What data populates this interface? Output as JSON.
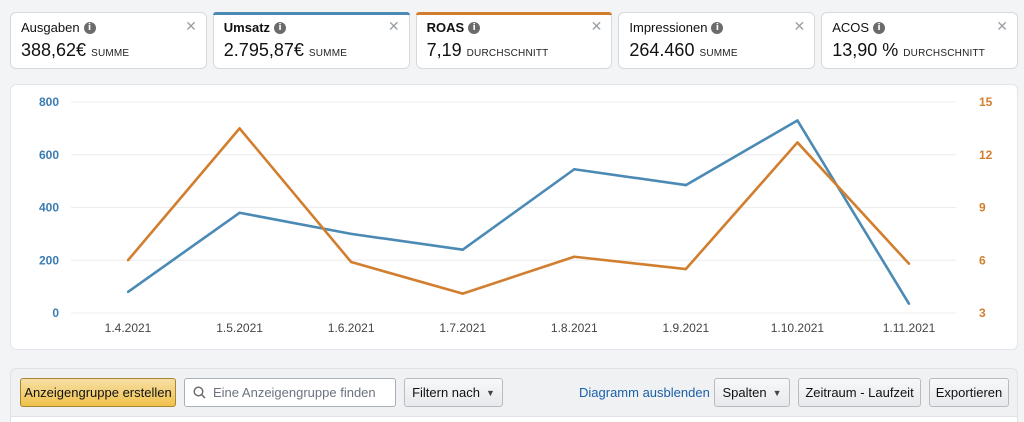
{
  "metrics": [
    {
      "label": "Ausgaben",
      "value": "388,62€",
      "agg": "SUMME",
      "selected": false,
      "accent": ""
    },
    {
      "label": "Umsatz",
      "value": "2.795,87€",
      "agg": "SUMME",
      "selected": true,
      "accent": "#4a8ab5"
    },
    {
      "label": "ROAS",
      "value": "7,19",
      "agg": "DURCHSCHNITT",
      "selected": true,
      "accent": "#d27e2f"
    },
    {
      "label": "Impressionen",
      "value": "264.460",
      "agg": "SUMME",
      "selected": false,
      "accent": ""
    },
    {
      "label": "ACOS",
      "value": "13,90 %",
      "agg": "DURCHSCHNITT",
      "selected": false,
      "accent": ""
    }
  ],
  "icons": {
    "info": "info-icon",
    "close": "close-icon",
    "search": "search-icon",
    "chevron": "chevron-down-icon"
  },
  "chart_data": {
    "type": "line",
    "categories": [
      "1.4.2021",
      "1.5.2021",
      "1.6.2021",
      "1.7.2021",
      "1.8.2021",
      "1.9.2021",
      "1.10.2021",
      "1.11.2021"
    ],
    "series": [
      {
        "values": [
          80,
          380,
          300,
          240,
          545,
          485,
          730,
          35
        ],
        "axis": "left",
        "color": "#4a8ab5"
      },
      {
        "values": [
          6.0,
          13.5,
          5.9,
          4.1,
          6.2,
          5.5,
          12.7,
          5.8
        ],
        "axis": "right",
        "color": "#d27e2f"
      }
    ],
    "y_left": {
      "min": 0,
      "max": 800,
      "ticks": [
        "0",
        "200",
        "400",
        "600",
        "800"
      ],
      "color": "#3b7bb0"
    },
    "y_right": {
      "min": 3,
      "max": 15,
      "ticks": [
        "3",
        "6",
        "9",
        "12",
        "15"
      ],
      "color": "#d27e2f"
    },
    "grid": true
  },
  "toolbar": {
    "create_label": "Anzeigengruppe erstellen",
    "search_placeholder": "Eine Anzeigengruppe finden",
    "filter_label": "Filtern nach",
    "hide_chart_label": "Diagramm ausblenden",
    "columns_label": "Spalten",
    "range_label": "Zeitraum - Laufzeit",
    "export_label": "Exportieren"
  }
}
